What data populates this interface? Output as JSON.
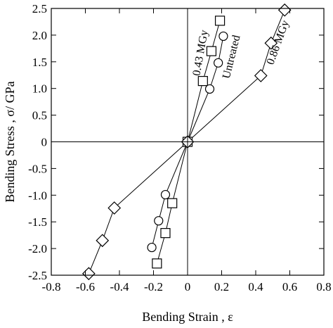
{
  "chart_data": {
    "type": "scatter",
    "title": "",
    "xlabel": "Bending Strain , ε",
    "ylabel": "Bending Stress , σ/ GPa",
    "xlim": [
      -0.8,
      0.8
    ],
    "ylim": [
      -2.5,
      2.5
    ],
    "x_ticks": [
      -0.8,
      -0.6,
      -0.4,
      -0.2,
      0,
      0.2,
      0.4,
      0.6,
      0.8
    ],
    "x_tick_labels": [
      "-0.8",
      "-0.6",
      "-0.4",
      "-0.2",
      "0",
      "0.2",
      "0.4",
      "0.6",
      "0.8"
    ],
    "y_ticks": [
      2.5,
      2.0,
      1.5,
      1.0,
      0.5,
      0,
      -0.5,
      -1.0,
      -1.5,
      -2.0,
      -2.5
    ],
    "y_tick_labels": [
      "2.5",
      "2.0",
      "1.5",
      "1.0",
      "0.5",
      "0",
      "-0.5",
      "-1.0",
      "-1.5",
      "-2.0",
      "-2.5"
    ],
    "grid": false,
    "reference_lines": {
      "x": 0,
      "y": 0
    },
    "series": [
      {
        "name": "0.43 MGy",
        "marker": "square",
        "label_rotation": -80,
        "points": [
          {
            "x": -0.18,
            "y": -2.28
          },
          {
            "x": -0.13,
            "y": -1.71
          },
          {
            "x": -0.09,
            "y": -1.15
          },
          {
            "x": 0.0,
            "y": 0.0
          },
          {
            "x": 0.09,
            "y": 1.14
          },
          {
            "x": 0.14,
            "y": 1.7
          },
          {
            "x": 0.19,
            "y": 2.27
          }
        ]
      },
      {
        "name": "Untreated",
        "marker": "circle",
        "label_rotation": -76,
        "points": [
          {
            "x": -0.21,
            "y": -1.98
          },
          {
            "x": -0.17,
            "y": -1.48
          },
          {
            "x": -0.13,
            "y": -0.99
          },
          {
            "x": 0.0,
            "y": 0.0
          },
          {
            "x": 0.13,
            "y": 0.99
          },
          {
            "x": 0.18,
            "y": 1.48
          },
          {
            "x": 0.21,
            "y": 1.98
          }
        ]
      },
      {
        "name": "0.86 MGy",
        "marker": "diamond",
        "label_rotation": -70,
        "points": [
          {
            "x": -0.58,
            "y": -2.47
          },
          {
            "x": -0.5,
            "y": -1.85
          },
          {
            "x": -0.43,
            "y": -1.24
          },
          {
            "x": 0.0,
            "y": 0.0
          },
          {
            "x": 0.43,
            "y": 1.24
          },
          {
            "x": 0.49,
            "y": 1.85
          },
          {
            "x": 0.57,
            "y": 2.47
          }
        ]
      }
    ]
  }
}
